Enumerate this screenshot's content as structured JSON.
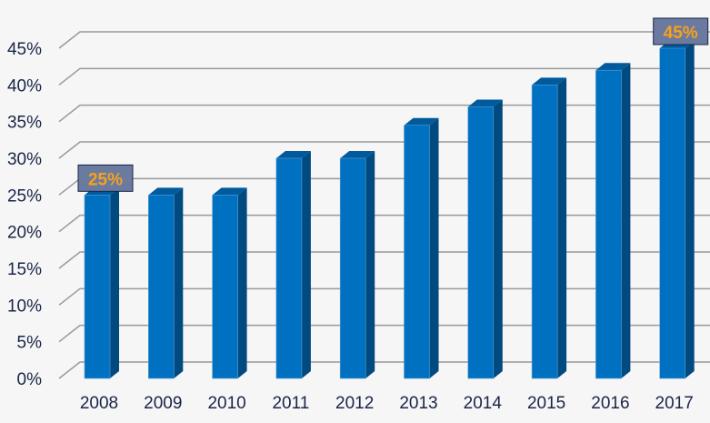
{
  "chart_data": {
    "type": "bar",
    "style": "3d-column",
    "categories": [
      "2008",
      "2009",
      "2010",
      "2011",
      "2012",
      "2013",
      "2014",
      "2015",
      "2016",
      "2017"
    ],
    "values": [
      25,
      25,
      25,
      30,
      30,
      34.5,
      37,
      40,
      42,
      45
    ],
    "y_ticks": [
      "0%",
      "5%",
      "10%",
      "15%",
      "20%",
      "25%",
      "30%",
      "35%",
      "40%",
      "45%"
    ],
    "ylim": [
      0,
      45
    ],
    "grid": true,
    "data_labels": [
      {
        "category": "2008",
        "text": "25%"
      },
      {
        "category": "2017",
        "text": "45%"
      }
    ],
    "colors": {
      "bar_front": "#0070c0",
      "bar_side": "#004a80",
      "bar_top": "#005a9c",
      "grid": "#999999",
      "label_box": "#6b7a9f",
      "label_text": "#f7a21b"
    }
  }
}
